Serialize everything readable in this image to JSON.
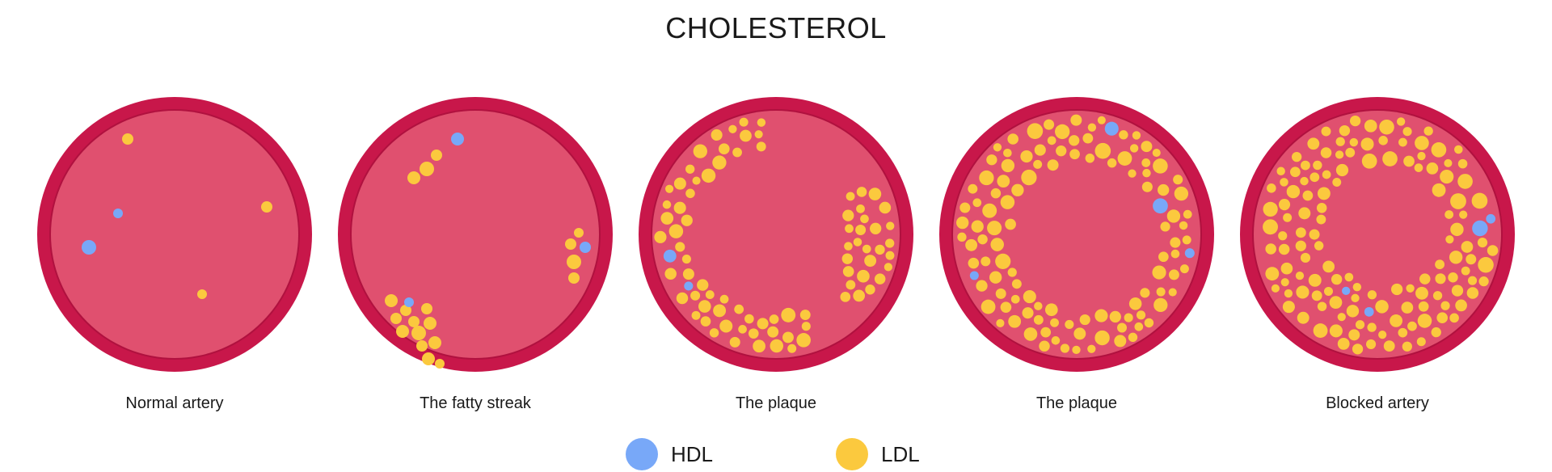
{
  "title": "CHOLESTEROL",
  "colors": {
    "wall_outer": "#c8174a",
    "lumen": "#e0506f",
    "rim_line": "#b0113f",
    "hdl": "#78a8f8",
    "ldl": "#fbc93e"
  },
  "stages": [
    {
      "label": "Normal artery",
      "deposit_level": 0.0
    },
    {
      "label": "The fatty streak",
      "deposit_level": 0.15
    },
    {
      "label": "The plaque",
      "deposit_level": 0.45
    },
    {
      "label": "The plaque",
      "deposit_level": 0.7
    },
    {
      "label": "Blocked artery",
      "deposit_level": 0.9
    }
  ],
  "legend": [
    {
      "label": "HDL",
      "color_key": "hdl"
    },
    {
      "label": "LDL",
      "color_key": "ldl"
    }
  ]
}
